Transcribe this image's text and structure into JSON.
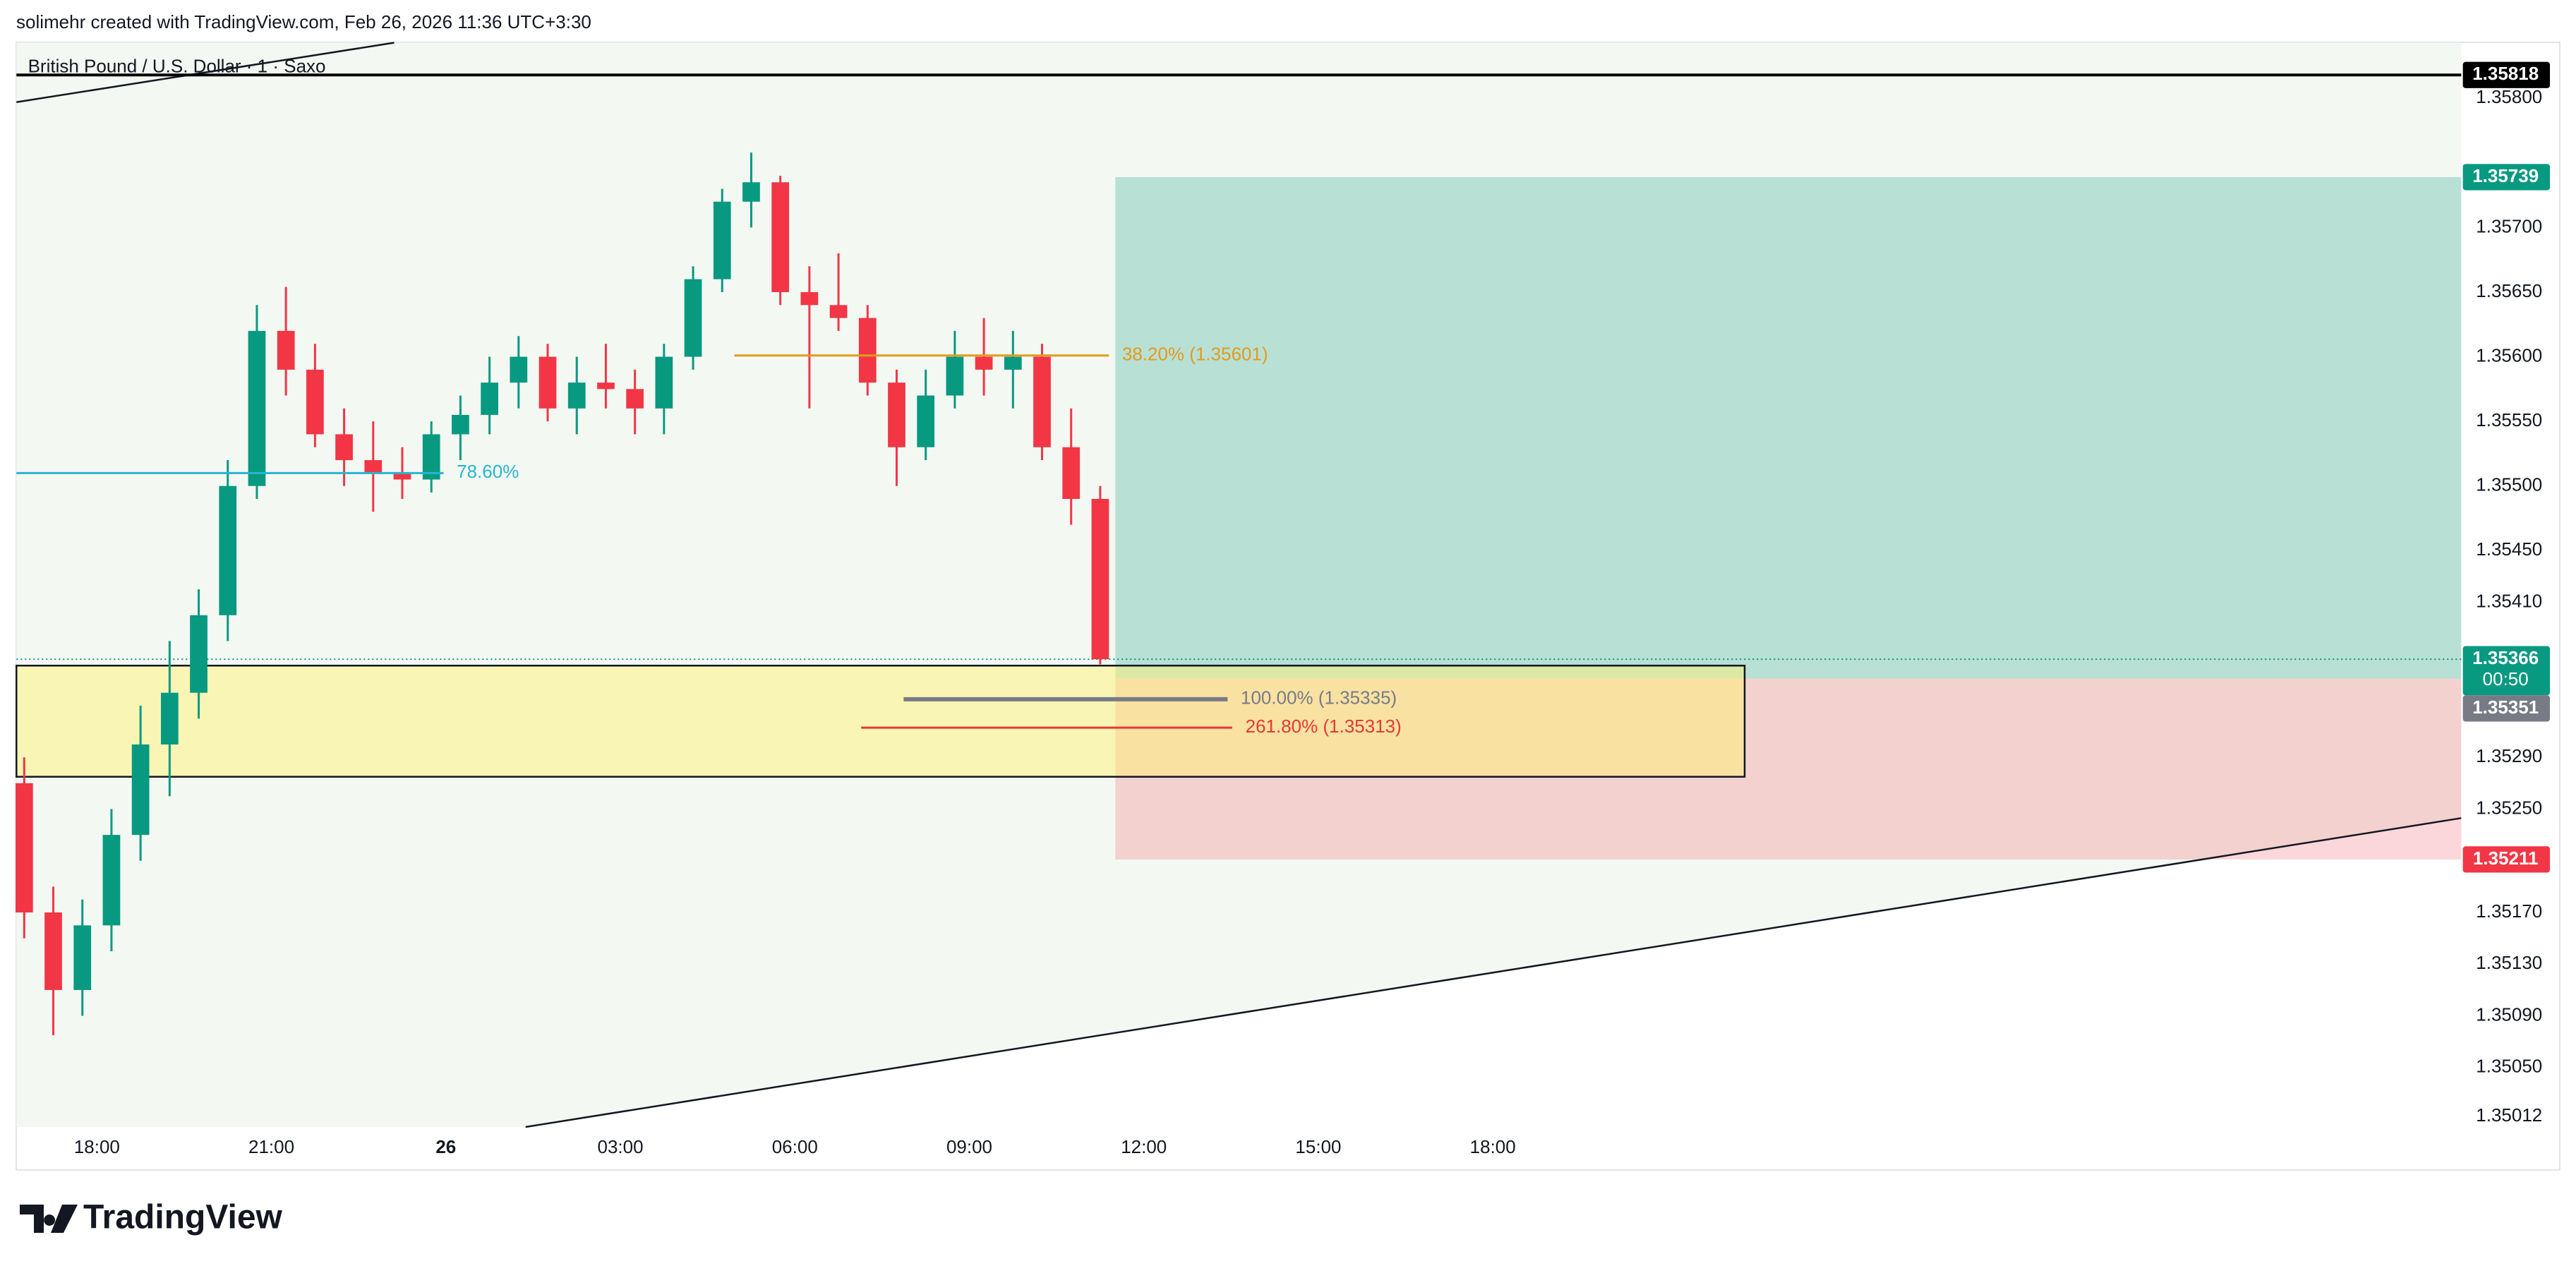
{
  "header": {
    "watermark": "solimehr created with TradingView.com, Feb 26, 2026 11:36 UTC+3:30",
    "symbol": "British Pound / U.S. Dollar · 1 · Saxo",
    "logo": "TradingView"
  },
  "chart_data": {
    "type": "candlestick",
    "x": [
      -1.25,
      -0.75,
      -0.25,
      0.25,
      0.75,
      1.25,
      1.75,
      2.25,
      2.75,
      3.25,
      3.75,
      4.25,
      4.75,
      5.25,
      5.75,
      6.25,
      6.75,
      7.25,
      7.75,
      8.25,
      8.75,
      9.25,
      9.75,
      10.25,
      10.75,
      11.25,
      11.75,
      12.25,
      12.75,
      13.25,
      13.75,
      14.25,
      14.75,
      15.25,
      15.75,
      16.25,
      16.75,
      17.25
    ],
    "open": [
      1.3527,
      1.3517,
      1.3511,
      1.3516,
      1.3523,
      1.353,
      1.3534,
      1.354,
      1.355,
      1.3562,
      1.3559,
      1.3554,
      1.3552,
      1.3551,
      1.35505,
      1.3554,
      1.35555,
      1.3558,
      1.356,
      1.3556,
      1.3558,
      1.35575,
      1.3556,
      1.356,
      1.3566,
      1.3572,
      1.35735,
      1.3565,
      1.3564,
      1.3563,
      1.3558,
      1.3553,
      1.3557,
      1.356,
      1.3559,
      1.356,
      1.3553,
      1.3549
    ],
    "high": [
      1.3529,
      1.3519,
      1.3518,
      1.3525,
      1.3533,
      1.3538,
      1.3542,
      1.3552,
      1.3564,
      1.35654,
      1.3561,
      1.3556,
      1.3555,
      1.3553,
      1.3555,
      1.3557,
      1.356,
      1.35616,
      1.3561,
      1.356,
      1.3561,
      1.3559,
      1.3561,
      1.3567,
      1.3573,
      1.35758,
      1.3574,
      1.3567,
      1.3568,
      1.3564,
      1.3559,
      1.3559,
      1.3562,
      1.3563,
      1.3562,
      1.3561,
      1.3556,
      1.355
    ],
    "low": [
      1.3515,
      1.35075,
      1.3509,
      1.3514,
      1.3521,
      1.3526,
      1.3532,
      1.3538,
      1.3549,
      1.3557,
      1.3553,
      1.355,
      1.3548,
      1.3549,
      1.35495,
      1.3552,
      1.3554,
      1.3556,
      1.3555,
      1.3554,
      1.3556,
      1.3554,
      1.3554,
      1.3559,
      1.3565,
      1.357,
      1.3564,
      1.3556,
      1.3562,
      1.3557,
      1.355,
      1.3552,
      1.3556,
      1.3557,
      1.3556,
      1.3552,
      1.3547,
      1.35362
    ],
    "close": [
      1.3517,
      1.3511,
      1.3516,
      1.3523,
      1.353,
      1.3534,
      1.354,
      1.355,
      1.3562,
      1.3559,
      1.3554,
      1.3552,
      1.3551,
      1.35505,
      1.3554,
      1.35555,
      1.3558,
      1.356,
      1.3556,
      1.3558,
      1.35575,
      1.3556,
      1.356,
      1.3566,
      1.3572,
      1.35735,
      1.3565,
      1.3564,
      1.3563,
      1.3558,
      1.3553,
      1.3557,
      1.356,
      1.3559,
      1.356,
      1.3553,
      1.3549,
      1.35366
    ],
    "up_color": "#089981",
    "down_color": "#f23645",
    "xlim": [
      -1.384,
      40.65
    ],
    "ylim": [
      1.35004,
      1.35843
    ],
    "xticks": [
      {
        "value": 0,
        "label": "18:00"
      },
      {
        "value": 3,
        "label": "21:00"
      },
      {
        "value": 6,
        "label": "26"
      },
      {
        "value": 9,
        "label": "03:00"
      },
      {
        "value": 12,
        "label": "06:00"
      },
      {
        "value": 15,
        "label": "09:00"
      },
      {
        "value": 18,
        "label": "12:00"
      },
      {
        "value": 21,
        "label": "15:00"
      },
      {
        "value": 24,
        "label": "18:00"
      }
    ],
    "yticks": [
      {
        "value": 1.358,
        "label": "1.35800"
      },
      {
        "value": 1.357,
        "label": "1.35700"
      },
      {
        "value": 1.3565,
        "label": "1.35650"
      },
      {
        "value": 1.356,
        "label": "1.35600"
      },
      {
        "value": 1.3555,
        "label": "1.35550"
      },
      {
        "value": 1.355,
        "label": "1.35500"
      },
      {
        "value": 1.3545,
        "label": "1.35450"
      },
      {
        "value": 1.3541,
        "label": "1.35410"
      },
      {
        "value": 1.3529,
        "label": "1.35290"
      },
      {
        "value": 1.3525,
        "label": "1.35250"
      },
      {
        "value": 1.3517,
        "label": "1.35170"
      },
      {
        "value": 1.3513,
        "label": "1.35130"
      },
      {
        "value": 1.3509,
        "label": "1.35090"
      },
      {
        "value": 1.3505,
        "label": "1.35050"
      },
      1.35012
    ],
    "hline": {
      "value": 1.35818,
      "color": "#000000"
    },
    "current": {
      "value": 1.35366,
      "countdown": "00:50",
      "color": "#089981"
    },
    "position": {
      "x": [
        17.51,
        40.65
      ],
      "target": 1.35739,
      "entry": 1.35351,
      "stop": 1.35211,
      "target_color": "#089981",
      "entry_color": "#787b86",
      "stop_color": "#f23645"
    },
    "zone": {
      "x": [
        -1.384,
        28.33
      ],
      "top": 1.35361,
      "bottom": 1.35275
    },
    "fibs": [
      {
        "label": "38.20% (1.35601)",
        "value": 1.35601,
        "x": [
          10.96,
          17.4
        ],
        "color": "#e39b1c"
      },
      {
        "label": "78.60%",
        "value": 1.3551,
        "x": [
          -1.384,
          5.96
        ],
        "color": "#26b5d1"
      },
      {
        "label": "100.00% (1.35335)",
        "value": 1.35335,
        "x": [
          13.87,
          19.44
        ],
        "color": "#787b86"
      },
      {
        "label": "261.80% (1.35313)",
        "value": 1.35313,
        "x": [
          13.14,
          19.52
        ],
        "color": "#e53935"
      }
    ],
    "trendlines": [
      {
        "x": [
          -1.384,
          5.11
        ],
        "y": [
          1.35797,
          1.35843
        ]
      },
      {
        "x": [
          7.37,
          40.65
        ],
        "y": [
          1.35004,
          1.35243
        ]
      }
    ]
  }
}
